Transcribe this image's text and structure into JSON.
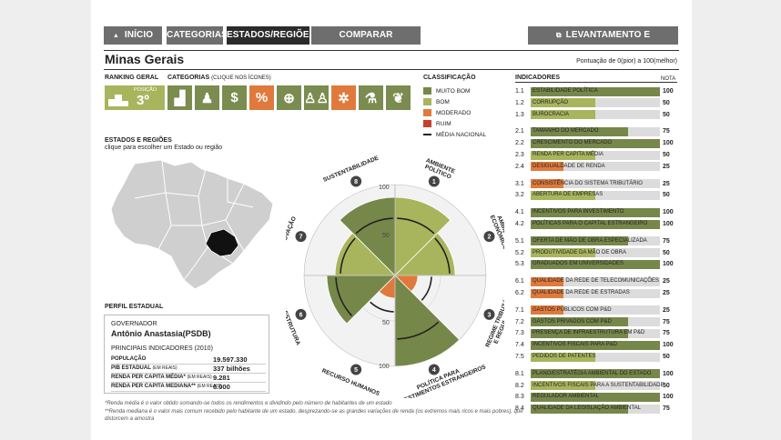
{
  "nav": {
    "home": "INÍCIO",
    "categories": "CATEGORIAS",
    "states": "ESTADOS/REGIÕES",
    "compare": "COMPARAR RESULTADOS",
    "methodology": "LEVANTAMENTO E METODOLOGIA"
  },
  "state_title": "Minas Gerais",
  "score_note": "Pontuação de 0(pior) a 100(melhor)",
  "ranking": {
    "header": "RANKING GERAL",
    "position_label": "POSIÇÃO",
    "position_value": "3º"
  },
  "categories": {
    "header": "CATEGORIAS",
    "hint": "(CLIQUE NOS ÍCONES)"
  },
  "category_icons": [
    {
      "icon": "podium-icon",
      "glyph": "▟",
      "color": "#7a8c4f"
    },
    {
      "icon": "person-icon",
      "glyph": "♟",
      "color": "#7a8c4f"
    },
    {
      "icon": "dollar-icon",
      "glyph": "$",
      "color": "#7a8c4f"
    },
    {
      "icon": "percent-icon",
      "glyph": "%",
      "color": "#e07a3c"
    },
    {
      "icon": "globe-icon",
      "glyph": "⊕",
      "color": "#7a8c4f"
    },
    {
      "icon": "people-icon",
      "glyph": "♙♙",
      "color": "#7a8c4f"
    },
    {
      "icon": "gears-icon",
      "glyph": "✲",
      "color": "#e07a3c"
    },
    {
      "icon": "flask-icon",
      "glyph": "⚗",
      "color": "#7a8c4f"
    },
    {
      "icon": "leaf-icon",
      "glyph": "❦",
      "color": "#7a8c4f"
    }
  ],
  "states_section": {
    "header": "ESTADOS E REGIÕES",
    "hint": "clique para escolher um Estado ou região"
  },
  "classification": {
    "header": "CLASSIFICAÇÃO",
    "items": [
      {
        "label": "MUITO BOM",
        "color": "#76874a"
      },
      {
        "label": "BOM",
        "color": "#a8b55c"
      },
      {
        "label": "MODERADO",
        "color": "#e07a3c"
      },
      {
        "label": "RUIM",
        "color": "#c8402a"
      }
    ],
    "national_label": "MÉDIA NACIONAL"
  },
  "radar": {
    "ticks": [
      "100",
      "50",
      "50",
      "100"
    ],
    "sectors": [
      {
        "num": "1",
        "label_lines": [
          "AMBIENTE",
          "POLÍTICO"
        ],
        "score": 86,
        "national": 63,
        "color": "#a8b55c"
      },
      {
        "num": "2",
        "label_lines": [
          "AMBIENTE",
          "ECONÔMICO"
        ],
        "score": 66,
        "national": 60,
        "color": "#a8b55c"
      },
      {
        "num": "3",
        "label_lines": [
          "REGIME TRIBUTÁRIO",
          "E REGULATÓRIO"
        ],
        "score": 25,
        "national": 40,
        "color": "#e07a3c"
      },
      {
        "num": "4",
        "label_lines": [
          "POLÍTICA PARA",
          "INVESTIMENTOS ESTRANGEIROS"
        ],
        "score": 100,
        "national": 70,
        "color": "#76874a"
      },
      {
        "num": "5",
        "label_lines": [
          "RECURSO HUMANOS"
        ],
        "score": 25,
        "national": 40,
        "color": "#e07a3c"
      },
      {
        "num": "6",
        "label_lines": [
          "INFRAESTRUTURA"
        ],
        "score": 75,
        "national": 65,
        "color": "#76874a"
      },
      {
        "num": "7",
        "label_lines": [
          "INOVAÇÃO"
        ],
        "score": 66,
        "national": 60,
        "color": "#a8b55c"
      },
      {
        "num": "8",
        "label_lines": [
          "SUSTENTABILIDADE"
        ],
        "score": 86,
        "national": 63,
        "color": "#76874a"
      }
    ]
  },
  "perfil": {
    "header": "PERFIL ESTADUAL",
    "governor_label": "GOVERNADOR",
    "governor_name": "Antônio Anastasia(PSDB)",
    "indicators_label": "PRINCIPAIS INDICADORES (2010)",
    "rows": [
      {
        "label": "POPULAÇÃO",
        "note": "",
        "value": "19.597.330"
      },
      {
        "label": "PIB ESTADUAL",
        "note": "(EM REAIS)",
        "value": "337 bilhões"
      },
      {
        "label": "RENDA PER CAPITA MÉDIA*",
        "note": "(EM REAIS)",
        "value": "9.281"
      },
      {
        "label": "RENDA PER CAPITA MEDIANA**",
        "note": "(EM REAIS)",
        "value": "6.000"
      }
    ]
  },
  "footnotes": [
    "*Renda média é o valor obtido somando-se todos os rendimentos e dividindo pelo número de habitantes de um estado",
    "**Renda mediana é o valor mais comum recebido pelo habitante de um estado, desprezando-se as grandes variações de renda (os extremos mais ricos e mais pobres), que distorcem a amostra"
  ],
  "indicators": {
    "header": "INDICADORES",
    "score_header": "NOTA",
    "items": [
      {
        "num": "1.1",
        "label": "ESTABILIDADE POLÍTICA",
        "value": "100",
        "score": 100,
        "color": "#76874a"
      },
      {
        "num": "1.2",
        "label": "CORRUPÇÃO",
        "value": "50",
        "score": 50,
        "color": "#a8b55c"
      },
      {
        "num": "1.3",
        "label": "BUROCRACIA",
        "value": "50",
        "score": 50,
        "color": "#a8b55c"
      },
      {
        "num": "2.1",
        "label": "TAMANHO DO MERCADO",
        "value": "75",
        "score": 75,
        "color": "#76874a"
      },
      {
        "num": "2.2",
        "label": "CRESCIMENTO DO MERCADO",
        "value": "100",
        "score": 100,
        "color": "#76874a"
      },
      {
        "num": "2.3",
        "label": "RENDA PER CAPITA MÉDIA",
        "value": "50",
        "score": 50,
        "color": "#a8b55c"
      },
      {
        "num": "2.4",
        "label": "DESIGUALDADE DE RENDA",
        "value": "25",
        "score": 25,
        "color": "#e07a3c"
      },
      {
        "num": "3.1",
        "label": "CONSISTÊNCIA DO SISTEMA TRIBUTÁRIO",
        "value": "25",
        "score": 25,
        "color": "#e07a3c"
      },
      {
        "num": "3.2",
        "label": "ABERTURA DE EMPRESAS",
        "value": "50",
        "score": 50,
        "color": "#a8b55c"
      },
      {
        "num": "4.1",
        "label": "INCENTIVOS PARA INVESTIMENTO",
        "value": "100",
        "score": 100,
        "color": "#76874a"
      },
      {
        "num": "4.2",
        "label": "POLÍTICAS PARA O CAPITAL ESTRANGEIRO",
        "value": "100",
        "score": 100,
        "color": "#76874a"
      },
      {
        "num": "5.1",
        "label": "OFERTA DE MÃO DE OBRA ESPECIALIZADA",
        "value": "75",
        "score": 75,
        "color": "#76874a"
      },
      {
        "num": "5.2",
        "label": "PRODUTIVIDADE DA MÃO DE OBRA",
        "value": "50",
        "score": 50,
        "color": "#a8b55c"
      },
      {
        "num": "5.3",
        "label": "GRADUADOS EM UNIVERSIDADES",
        "value": "100",
        "score": 100,
        "color": "#76874a"
      },
      {
        "num": "6.1",
        "label": "QUALIDADE DA REDE DE TELECOMUNICAÇÕES",
        "value": "25",
        "score": 25,
        "color": "#e07a3c"
      },
      {
        "num": "6.2",
        "label": "QUALIDADE DA REDE DE ESTRADAS",
        "value": "25",
        "score": 25,
        "color": "#e07a3c"
      },
      {
        "num": "7.1",
        "label": "GASTOS PÚBLICOS COM P&D",
        "value": "25",
        "score": 25,
        "color": "#e07a3c"
      },
      {
        "num": "7.2",
        "label": "GASTOS PRIVADOS COM P&D",
        "value": "75",
        "score": 75,
        "color": "#76874a"
      },
      {
        "num": "7.3",
        "label": "PRESENÇA DE INFRAESTRUTURA EM P&D",
        "value": "75",
        "score": 75,
        "color": "#76874a"
      },
      {
        "num": "7.4",
        "label": "INCENTIVOS FISCAIS PARA P&D",
        "value": "100",
        "score": 100,
        "color": "#76874a"
      },
      {
        "num": "7.5",
        "label": "PEDIDOS DE PATENTES",
        "value": "50",
        "score": 50,
        "color": "#a8b55c"
      },
      {
        "num": "8.1",
        "label": "PLANO/ESTRATÉGIA AMBIENTAL DO ESTADO",
        "value": "100",
        "score": 100,
        "color": "#76874a"
      },
      {
        "num": "8.2",
        "label": "INCENTIVOS FISCAIS PARA A SUSTENTABILIDADE",
        "value": "50",
        "score": 50,
        "color": "#a8b55c"
      },
      {
        "num": "8.3",
        "label": "REGULADOR AMBIENTAL",
        "value": "100",
        "score": 100,
        "color": "#76874a"
      },
      {
        "num": "8.4",
        "label": "QUALIDADE DA LEGISLAÇÃO AMBIENTAL",
        "value": "75",
        "score": 75,
        "color": "#76874a"
      }
    ]
  }
}
